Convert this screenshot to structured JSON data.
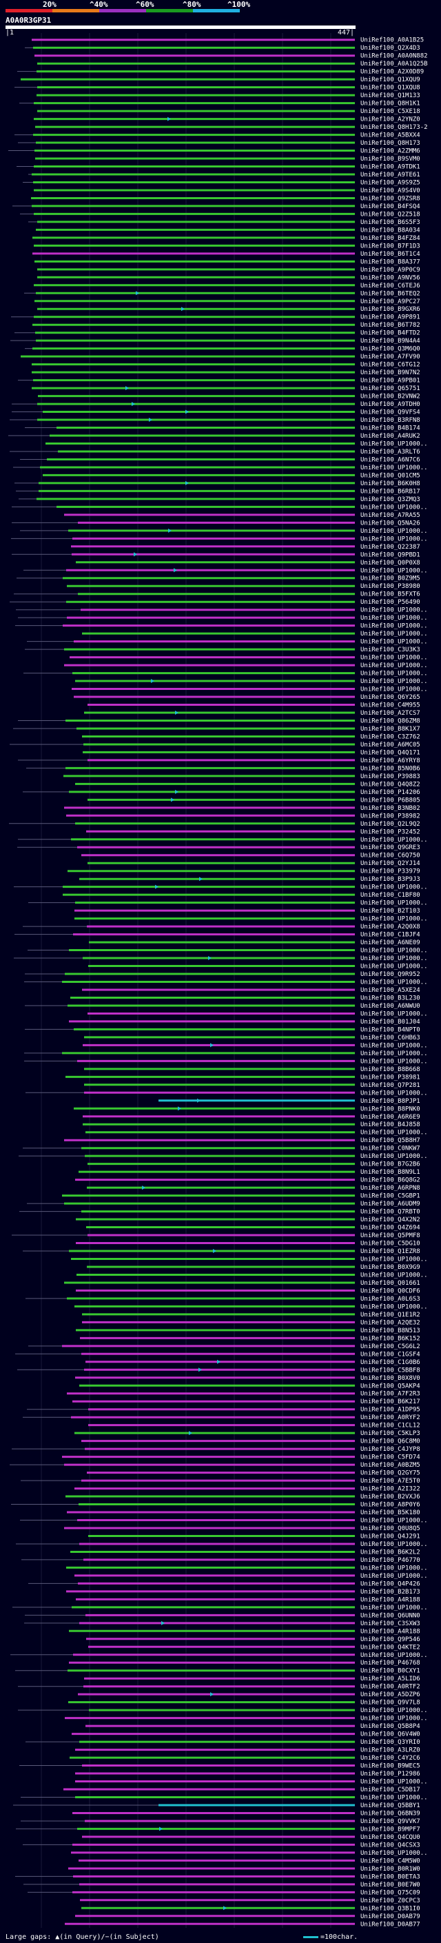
{
  "header": {
    "percent_labels": [
      "20%",
      "^40%",
      "^60%",
      "^80%",
      "^100%"
    ],
    "band_colors": [
      "#e0202a",
      "#e87a1a",
      "#9a30c0",
      "#1a9a20",
      "#20b0e0"
    ],
    "query_id": "A0A0R3GP31",
    "ruler_start": "|1",
    "ruler_end": "447|"
  },
  "legend": {
    "large_gaps": "Large gaps: ▲(in Query)/−(in Subject)",
    "scale_label": "=100char."
  },
  "colors": {
    "background": "#00001e",
    "green_hit": "#38c830",
    "magenta_hit": "#c030c8",
    "cyan_hit": "#20c0d0",
    "query_bar": "#ffffff"
  },
  "chart_data": {
    "type": "alignment-overview",
    "query_length": 447,
    "hits": [
      "UniRef100_A0A1B25",
      "UniRef100_Q2X4D3",
      "UniRef100_A0A0N882",
      "UniRef100_A0A1Q25B",
      "UniRef100_A2X0D89",
      "UniRef100_Q1XQU9",
      "UniRef100_Q1XQU8",
      "UniRef100_Q1M133",
      "UniRef100_Q8H1K1",
      "UniRef100_C5XE18",
      "UniRef100_A2YNZ0",
      "UniRef100_Q8H173-2",
      "UniRef100_A5BXX4",
      "UniRef100_Q8H173",
      "UniRef100_A2ZMM6",
      "UniRef100_B9SVM0",
      "UniRef100_A9TDK1",
      "UniRef100_A9TE61",
      "UniRef100_A9S9Z5",
      "UniRef100_A9S4V0",
      "UniRef100_Q9ZSR8",
      "UniRef100_B4FSQ4",
      "UniRef100_Q2Z518",
      "UniRef100_B6S5F3",
      "UniRef100_B8A034",
      "UniRef100_B4FZ84",
      "UniRef100_B7F1D3",
      "UniRef100_B6T1C4",
      "UniRef100_B8A377",
      "UniRef100_A9P0C9",
      "UniRef100_A9NV56",
      "UniRef100_C6TEJ6",
      "UniRef100_B6TEQ2",
      "UniRef100_A9PC27",
      "UniRef100_B9GXR6",
      "UniRef100_A9P891",
      "UniRef100_B6T782",
      "UniRef100_B4FTD2",
      "UniRef100_B9N4A4",
      "UniRef100_Q3M6Q0",
      "UniRef100_A7FV90",
      "UniRef100_C6TG12",
      "UniRef100_B9N7N2",
      "UniRef100_A9PB01",
      "UniRef100_Q65751",
      "UniRef100_B2VNW2",
      "UniRef100_A9TDH0",
      "UniRef100_Q9VFS4",
      "UniRef100_B3RFN8",
      "UniRef100_B4B174",
      "UniRef100_A4RUK2",
      "UniRef100_UP1000..",
      "UniRef100_A3RLT6",
      "UniRef100_A6N7C6",
      "UniRef100_UP1000..",
      "UniRef100_Q01CM5",
      "UniRef100_B6K0H8",
      "UniRef100_B6RB17",
      "UniRef100_Q3ZMQ3",
      "UniRef100_UP1000..",
      "UniRef100_A7RA55",
      "UniRef100_Q5NA26",
      "UniRef100_UP1000..",
      "UniRef100_UP1000..",
      "UniRef100_Q22387",
      "UniRef100_Q9PBD1",
      "UniRef100_Q0P0X8",
      "UniRef100_UP1000..",
      "UniRef100_B0Z9M5",
      "UniRef100_P38980",
      "UniRef100_B5FXT6",
      "UniRef100_P56490",
      "UniRef100_UP1000..",
      "UniRef100_UP1000..",
      "UniRef100_UP1000..",
      "UniRef100_UP1000..",
      "UniRef100_UP1000..",
      "UniRef100_C3U3K3",
      "UniRef100_UP1000..",
      "UniRef100_UP1000..",
      "UniRef100_UP1000..",
      "UniRef100_UP1000..",
      "UniRef100_UP1000..",
      "UniRef100_Q6Y265",
      "UniRef100_C4M955",
      "UniRef100_A2TCS7",
      "UniRef100_Q86ZM8",
      "UniRef100_B8K1X7",
      "UniRef100_C3Z762",
      "UniRef100_A6MC05",
      "UniRef100_Q4Q171",
      "UniRef100_A6YRY8",
      "UniRef100_B5N0B6",
      "UniRef100_P39883",
      "UniRef100_Q4Q8Z2",
      "UniRef100_P14206",
      "UniRef100_P6B805",
      "UniRef100_B3NB02",
      "UniRef100_P38982",
      "UniRef100_Q2L9Q2",
      "UniRef100_P32452",
      "UniRef100_UP1000..",
      "UniRef100_Q9GRE3",
      "UniRef100_C6Q750",
      "UniRef100_Q2YJ14",
      "UniRef100_P33979",
      "UniRef100_B3P9J3",
      "UniRef100_UP1000..",
      "UniRef100_C1BF80",
      "UniRef100_UP1000..",
      "UniRef100_B2T103",
      "UniRef100_UP1000..",
      "UniRef100_A2Q0X8",
      "UniRef100_C1BJF4",
      "UniRef100_A6NE09",
      "UniRef100_UP1000..",
      "UniRef100_UP1000..",
      "UniRef100_UP1000..",
      "UniRef100_Q9R952",
      "UniRef100_UP1000..",
      "UniRef100_A5XE24",
      "UniRef100_B3L230",
      "UniRef100_A6NWU0",
      "UniRef100_UP1000..",
      "UniRef100_B01J04",
      "UniRef100_B4NPT0",
      "UniRef100_C6HB63",
      "UniRef100_UP1000..",
      "UniRef100_UP1000..",
      "UniRef100_UP1000..",
      "UniRef100_B8B668",
      "UniRef100_P38981",
      "UniRef100_Q7P281",
      "UniRef100_UP1000..",
      "UniRef100_B8PJP1",
      "UniRef100_B8PNK0",
      "UniRef100_A6R6E9",
      "UniRef100_B4J858",
      "UniRef100_UP1000..",
      "UniRef100_Q5B8H7",
      "UniRef100_C0NKW7",
      "UniRef100_UP1000..",
      "UniRef100_B7G2B6",
      "UniRef100_B8N9L1",
      "UniRef100_B6Q8G2",
      "UniRef100_A6RPN8",
      "UniRef100_C5GBP1",
      "UniRef100_A6UDM9",
      "UniRef100_Q7RBT0",
      "UniRef100_Q4X2N2",
      "UniRef100_Q4Z694",
      "UniRef100_Q5PMF8",
      "UniRef100_C5DG10",
      "UniRef100_Q1EZR8",
      "UniRef100_UP1000..",
      "UniRef100_B0X9G9",
      "UniRef100_UP1000..",
      "UniRef100_Q01661",
      "UniRef100_Q0CDF6",
      "UniRef100_A0L6S3",
      "UniRef100_UP1000..",
      "UniRef100_Q1E1R2",
      "UniRef100_A2QE32",
      "UniRef100_B8N513",
      "UniRef100_B6K152",
      "UniRef100_C5G6L2",
      "UniRef100_C1GSF4",
      "UniRef100_C1G0B6",
      "UniRef100_C5BBF8",
      "UniRef100_B0X8V0",
      "UniRef100_Q5AKP4",
      "UniRef100_A7F2R3",
      "UniRef100_B6K217",
      "UniRef100_A1DP95",
      "UniRef100_A0RYF2",
      "UniRef100_C1CL12",
      "UniRef100_C5KLP3",
      "UniRef100_Q6C8M0",
      "UniRef100_C4JYP8",
      "UniRef100_C5FD74",
      "UniRef100_A0BZM5",
      "UniRef100_Q2GY75",
      "UniRef100_A7E5T0",
      "UniRef100_A2I322",
      "UniRef100_B2VXJ6",
      "UniRef100_A8P0Y6",
      "UniRef100_B5K180",
      "UniRef100_UP1000..",
      "UniRef100_Q0U8Q5",
      "UniRef100_Q4J291",
      "UniRef100_UP1000..",
      "UniRef100_B6K2L2",
      "UniRef100_P46770",
      "UniRef100_UP1000..",
      "UniRef100_UP1000..",
      "UniRef100_Q4P426",
      "UniRef100_B2B173",
      "UniRef100_A4R188",
      "UniRef100_UP1000..",
      "UniRef100_Q6UNN0",
      "UniRef100_C3SXW3",
      "UniRef100_A4R188",
      "UniRef100_Q9P546",
      "UniRef100_Q4KTE2",
      "UniRef100_UP1000..",
      "UniRef100_P46768",
      "UniRef100_B0CXY1",
      "UniRef100_A5LID6",
      "UniRef100_A0RTF2",
      "UniRef100_A5DZP6",
      "UniRef100_Q9V7L8",
      "UniRef100_UP1000..",
      "UniRef100_UP1000..",
      "UniRef100_Q5B8P4",
      "UniRef100_Q6V4W0",
      "UniRef100_Q3YRI0",
      "UniRef100_A3LRZ0",
      "UniRef100_C4Y2C6",
      "UniRef100_B9WEC5",
      "UniRef100_P12986",
      "UniRef100_UP1000..",
      "UniRef100_C5DB17",
      "UniRef100_UP1000..",
      "UniRef100_Q5BBY1",
      "UniRef100_Q6BN39",
      "UniRef100_Q9VVK7",
      "UniRef100_B9MPF7",
      "UniRef100_Q4CQU0",
      "UniRef100_Q4CSX3",
      "UniRef100_UP1000..",
      "UniRef100_C4M5W0",
      "UniRef100_B0R1W0",
      "UniRef100_B0ETA3",
      "UniRef100_B0E7W0",
      "UniRef100_Q75C09",
      "UniRef100_Z0CPC3",
      "UniRef100_Q3B1I0",
      "UniRef100_D0AB79",
      "UniRef100_D0AB77"
    ]
  }
}
